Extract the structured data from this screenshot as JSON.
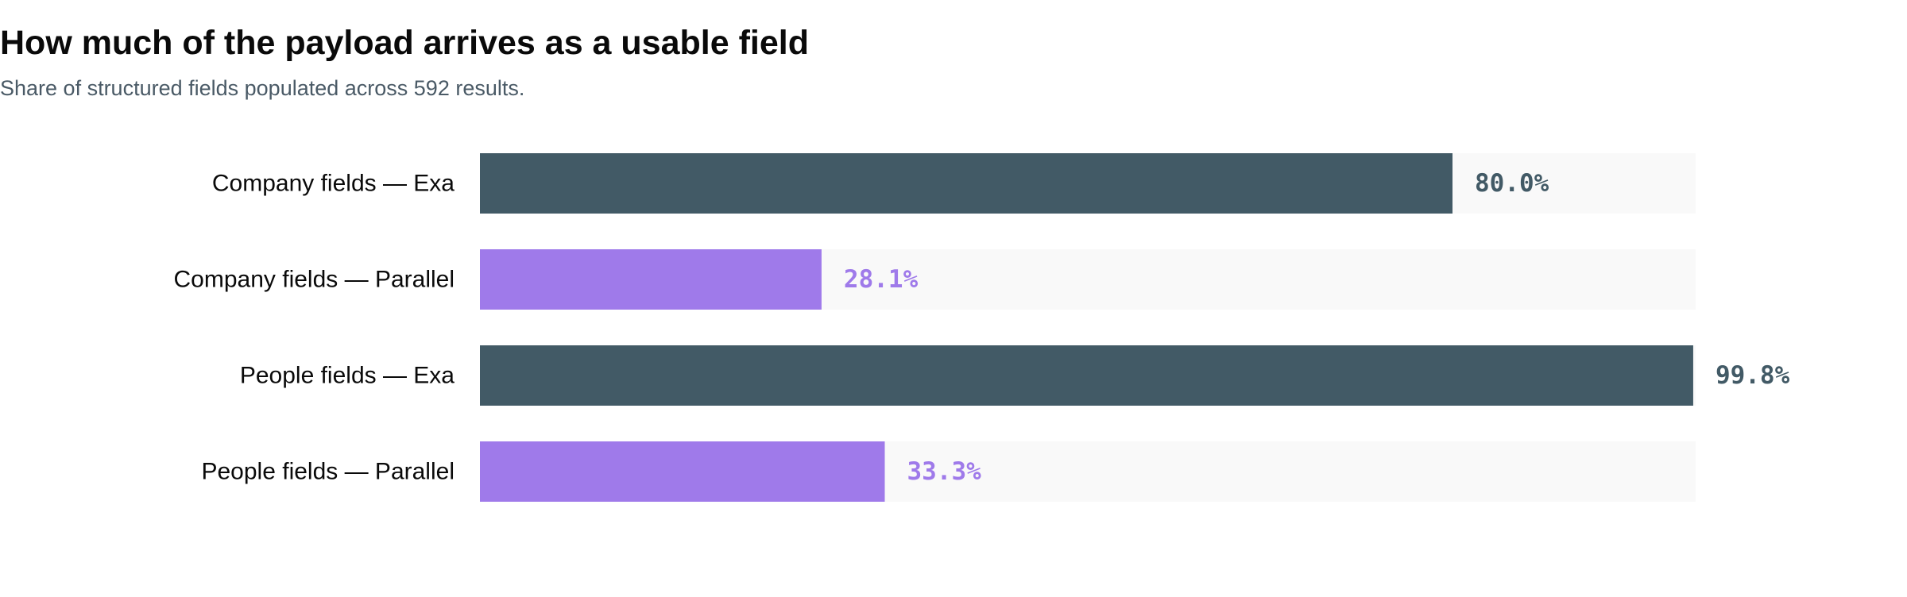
{
  "chart_data": {
    "type": "bar",
    "orientation": "horizontal",
    "title": "How much of the payload arrives as a usable field",
    "subtitle": "Share of structured fields populated across 592 results.",
    "categories": [
      "Company fields — Exa",
      "Company fields — Parallel",
      "People fields — Exa",
      "People fields — Parallel"
    ],
    "values": [
      80.0,
      28.1,
      99.8,
      33.3
    ],
    "value_labels": [
      "80.0%",
      "28.1%",
      "99.8%",
      "33.3%"
    ],
    "xlim": [
      0,
      100
    ],
    "colors": [
      "#425a66",
      "#9f7aea",
      "#425a66",
      "#9f7aea"
    ],
    "track_color": "#f9f9f9",
    "grid": false,
    "legend": "none"
  }
}
